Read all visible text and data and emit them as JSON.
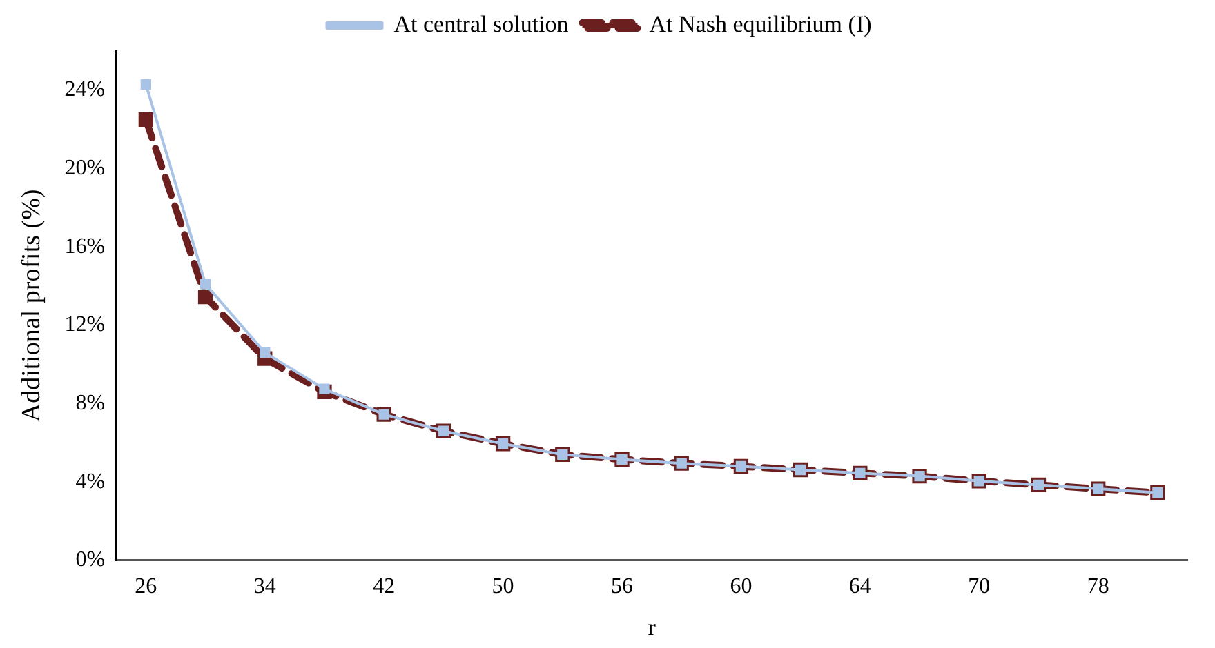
{
  "chart_data": {
    "type": "line",
    "xlabel": "r",
    "ylabel": "Additional profits (%)",
    "categories": [
      "26",
      null,
      "34",
      null,
      "42",
      null,
      "50",
      null,
      "56",
      null,
      "60",
      null,
      "64",
      null,
      "70",
      null,
      "78",
      null
    ],
    "series": [
      {
        "name": "At central solution",
        "color": "#a9c3e6",
        "line_style": "solid",
        "values": [
          24.3,
          14.1,
          10.6,
          8.75,
          7.45,
          6.6,
          5.95,
          5.4,
          5.15,
          4.95,
          4.8,
          4.62,
          4.45,
          4.3,
          4.05,
          3.85,
          3.65,
          3.45
        ]
      },
      {
        "name": "At Nash equilibrium (I)",
        "color": "#6b1f1f",
        "line_style": "dashed",
        "values": [
          22.5,
          13.45,
          10.3,
          8.6,
          7.45,
          6.6,
          5.95,
          5.4,
          5.15,
          4.95,
          4.8,
          4.62,
          4.45,
          4.3,
          4.05,
          3.85,
          3.65,
          3.45
        ]
      }
    ],
    "ylim": [
      0,
      26
    ],
    "yticks": [
      {
        "value": 0,
        "label": "0%"
      },
      {
        "value": 4,
        "label": "4%"
      },
      {
        "value": 8,
        "label": "8%"
      },
      {
        "value": 12,
        "label": "12%"
      },
      {
        "value": 16,
        "label": "16%"
      },
      {
        "value": 20,
        "label": "20%"
      },
      {
        "value": 24,
        "label": "24%"
      }
    ],
    "grid": false,
    "legend": "top",
    "marker": "square"
  }
}
